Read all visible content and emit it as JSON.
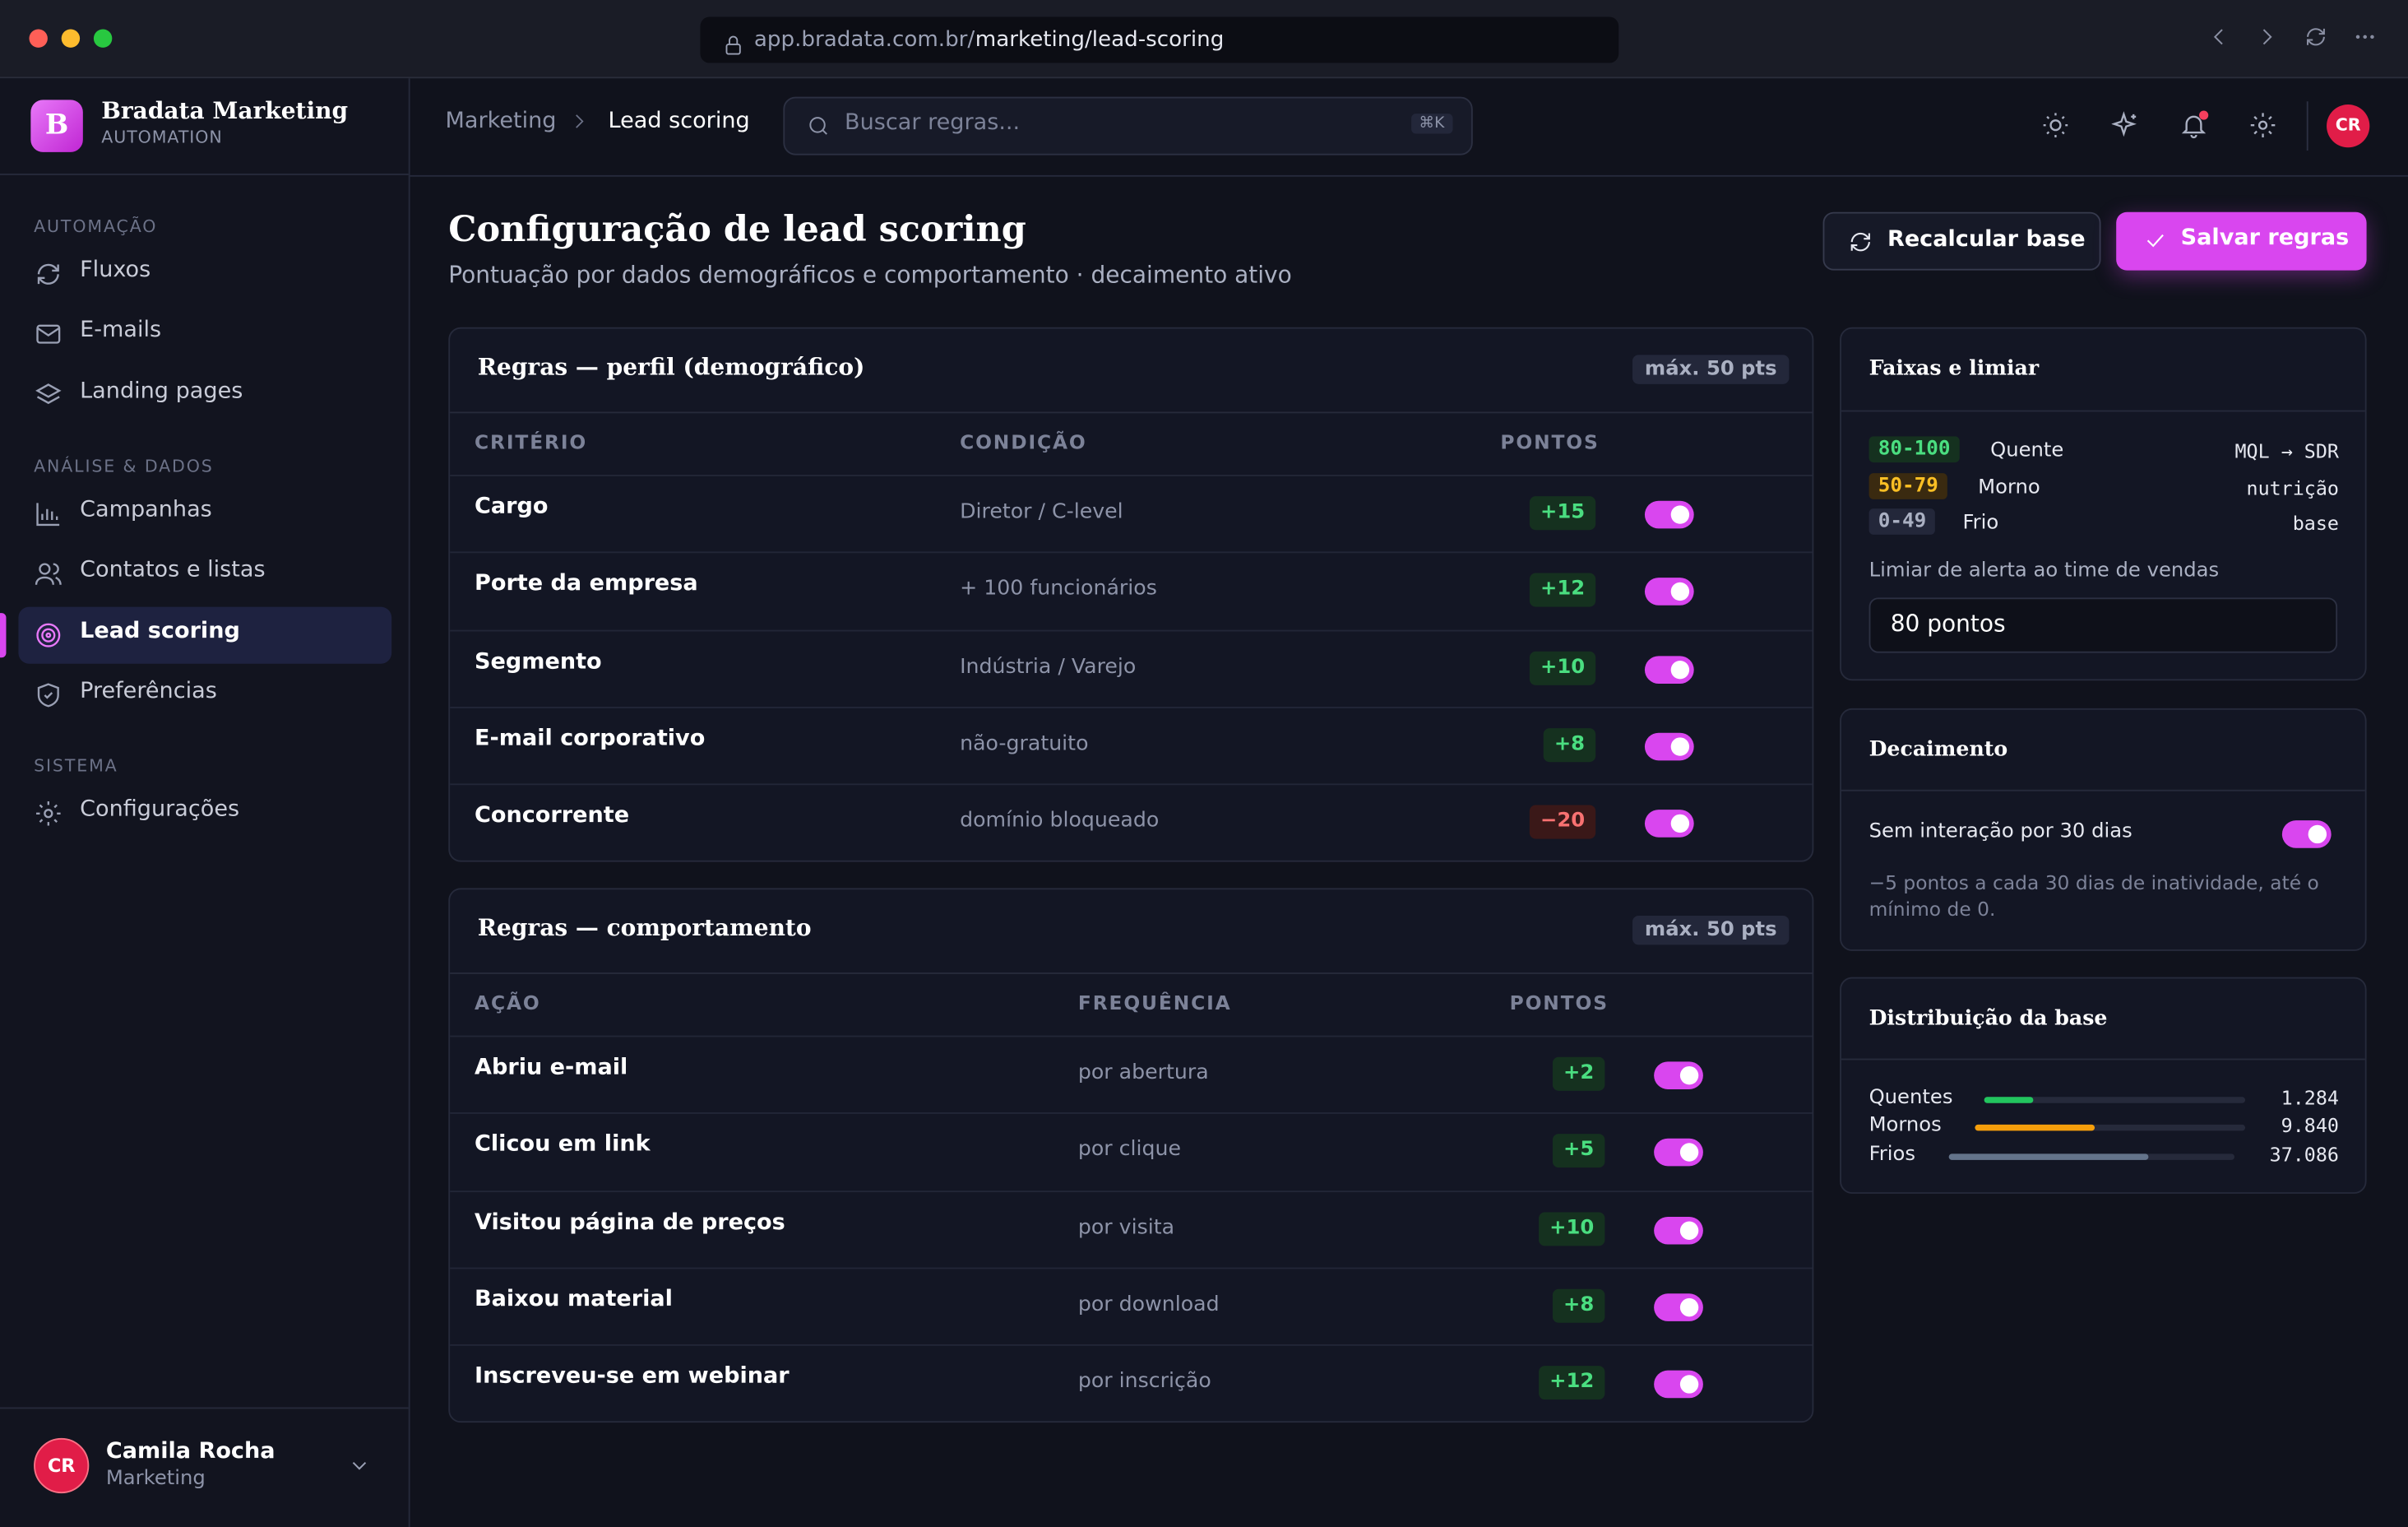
{
  "browser": {
    "url_host": "app.bradata.com.br/",
    "url_path": "marketing/lead-scoring"
  },
  "sidebar": {
    "brand": {
      "initial": "B",
      "name": "Bradata Marketing",
      "sub": "AUTOMATION"
    },
    "sections": [
      {
        "title": "AUTOMAÇÃO",
        "items": [
          "Fluxos",
          "E-mails",
          "Landing pages"
        ]
      },
      {
        "title": "ANÁLISE & DADOS",
        "items": [
          "Campanhas",
          "Contatos e listas",
          "Lead scoring",
          "Preferências"
        ]
      },
      {
        "title": "SISTEMA",
        "items": [
          "Configurações"
        ]
      }
    ],
    "user": {
      "initials": "CR",
      "name": "Camila Rocha",
      "role": "Marketing"
    }
  },
  "topbar": {
    "breadcrumb": [
      "Marketing",
      "Lead scoring"
    ],
    "search": "Buscar regras...",
    "shortcut": "⌘K",
    "avatar": "CR"
  },
  "header": {
    "title": "Configuração de lead scoring",
    "subtitle": "Pontuação por dados demográficos e comportamento · decaimento ativo",
    "buttons": [
      "Recalcular base",
      "Salvar regras"
    ]
  },
  "tables": [
    {
      "title": "Regras — perfil (demográfico)",
      "badge": "máx. 50 pts",
      "columns": [
        "CRITÉRIO",
        "CONDIÇÃO",
        "PONTOS"
      ],
      "rows": [
        [
          "Cargo",
          "Diretor / C-level",
          "+15"
        ],
        [
          "Porte da empresa",
          "+ 100 funcionários",
          "+12"
        ],
        [
          "Segmento",
          "Indústria / Varejo",
          "+10"
        ],
        [
          "E-mail corporativo",
          "não-gratuito",
          "+8"
        ],
        [
          "Concorrente",
          "domínio bloqueado",
          "−20"
        ]
      ]
    },
    {
      "title": "Regras — comportamento",
      "badge": "máx. 50 pts",
      "columns": [
        "AÇÃO",
        "FREQUÊNCIA",
        "PONTOS"
      ],
      "rows": [
        [
          "Abriu e-mail",
          "por abertura",
          "+2"
        ],
        [
          "Clicou em link",
          "por clique",
          "+5"
        ],
        [
          "Visitou página de preços",
          "por visita",
          "+10"
        ],
        [
          "Baixou material",
          "por download",
          "+8"
        ],
        [
          "Inscreveu-se em webinar",
          "por inscrição",
          "+12"
        ]
      ]
    }
  ],
  "thresholds": {
    "title": "Faixas e limiar",
    "bands": [
      {
        "range": "80-100",
        "label": "Quente",
        "action": "MQL → SDR"
      },
      {
        "range": "50-79",
        "label": "Morno",
        "action": "nutrição"
      },
      {
        "range": "0-49",
        "label": "Frio",
        "action": "base"
      }
    ],
    "alert_label": "Limiar de alerta ao time de vendas",
    "alert_value": "80 pontos"
  },
  "decay": {
    "title": "Decaimento",
    "toggle_label": "Sem interação por 30 dias",
    "note": "−5 pontos a cada 30 dias de inatividade, até o mínimo de 0."
  },
  "distribution": {
    "title": "Distribuição da base",
    "rows": [
      {
        "label": "Quentes",
        "count": "1.284"
      },
      {
        "label": "Mornos",
        "count": "9.840"
      },
      {
        "label": "Frios",
        "count": "37.086"
      }
    ]
  }
}
